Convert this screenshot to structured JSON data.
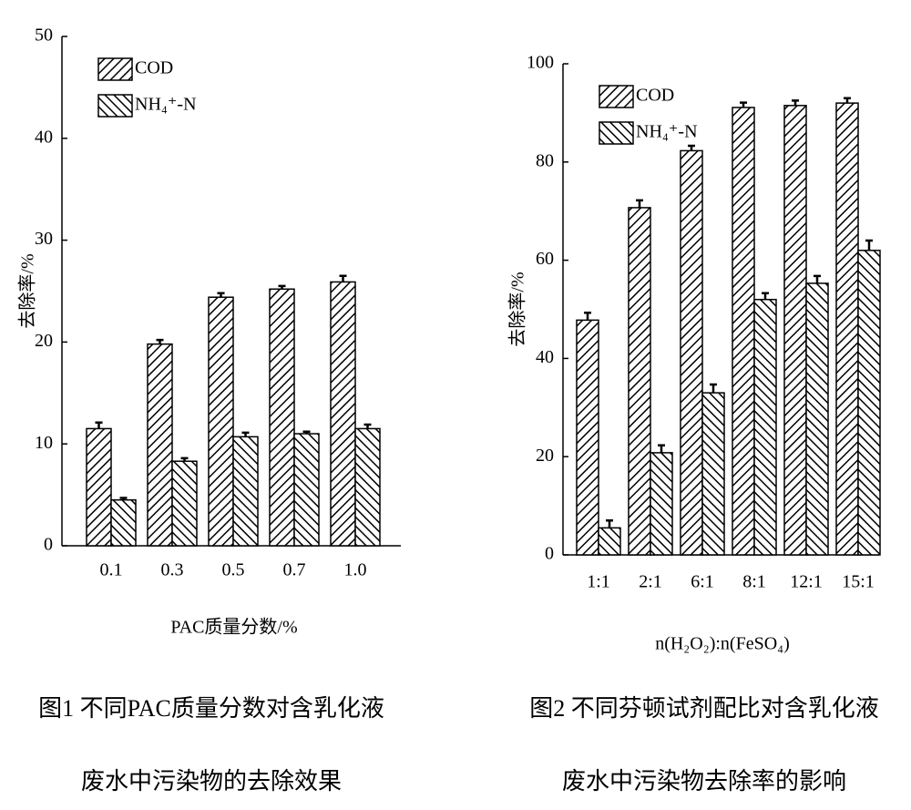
{
  "chart_data": [
    {
      "type": "bar",
      "categories": [
        "0.1",
        "0.3",
        "0.5",
        "0.7",
        "1.0"
      ],
      "series": [
        {
          "name": "COD",
          "color": "#000000",
          "hatch": "forward",
          "values": [
            11.5,
            19.8,
            24.4,
            25.2,
            25.9
          ],
          "errors": [
            0.6,
            0.4,
            0.4,
            0.3,
            0.6
          ]
        },
        {
          "name": "NH₄⁺-N",
          "color": "#000000",
          "hatch": "back",
          "values": [
            4.5,
            8.3,
            10.7,
            11.0,
            11.5
          ],
          "errors": [
            0.2,
            0.3,
            0.4,
            0.2,
            0.4
          ]
        }
      ],
      "xlabel": "PAC质量分数/%",
      "ylabel": "去除率/%",
      "ylim": [
        0,
        50
      ],
      "yticks": [
        0,
        10,
        20,
        30,
        40,
        50
      ],
      "legend": "upper left",
      "caption": [
        "图1  不同PAC质量分数对含乳化液",
        "废水中污染物的去除效果"
      ]
    },
    {
      "type": "bar",
      "categories": [
        "1:1",
        "2:1",
        "6:1",
        "8:1",
        "12:1",
        "15:1"
      ],
      "series": [
        {
          "name": "COD",
          "color": "#000000",
          "hatch": "forward",
          "values": [
            47.8,
            70.7,
            82.3,
            91.1,
            91.5,
            92.0
          ],
          "errors": [
            1.5,
            1.5,
            1.0,
            1.0,
            1.0,
            1.0
          ]
        },
        {
          "name": "NH₄⁺-N",
          "color": "#000000",
          "hatch": "back",
          "values": [
            5.5,
            20.8,
            33.0,
            52.0,
            55.3,
            62.0
          ],
          "errors": [
            1.5,
            1.5,
            1.7,
            1.3,
            1.5,
            2.0
          ]
        }
      ],
      "xlabel": "n(H₂O₂):n(FeSO₄)",
      "ylabel": "去除率/%",
      "ylim": [
        0,
        100
      ],
      "yticks": [
        0,
        20,
        40,
        60,
        80,
        100
      ],
      "legend": "upper left",
      "caption": [
        "图2  不同芬顿试剂配比对含乳化液",
        "废水中污染物去除率的影响"
      ]
    }
  ]
}
